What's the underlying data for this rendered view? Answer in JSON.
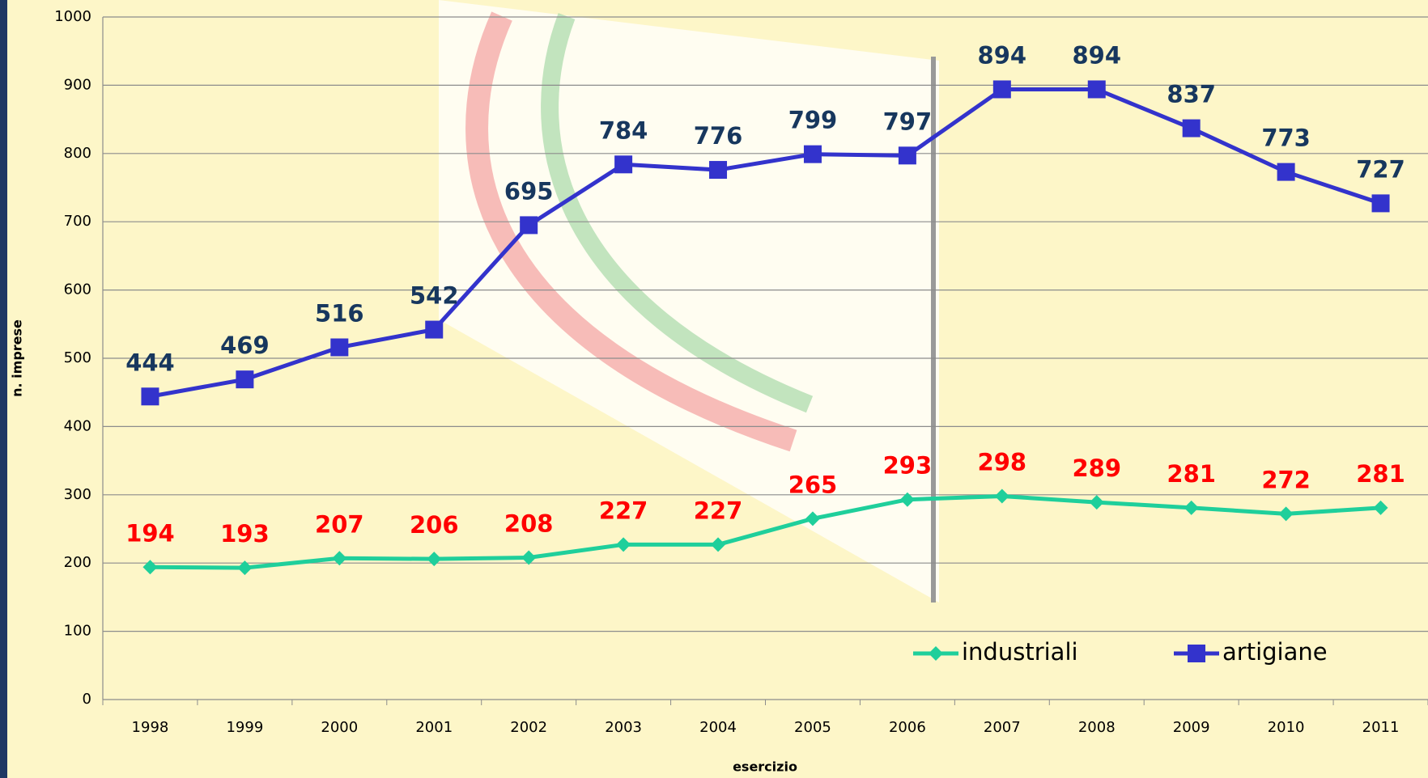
{
  "chart_data": {
    "type": "line",
    "x_label": "esercizio",
    "y_label": "n. imprese",
    "categories": [
      "1998",
      "1999",
      "2000",
      "2001",
      "2002",
      "2003",
      "2004",
      "2005",
      "2006",
      "2007",
      "2008",
      "2009",
      "2010",
      "2011"
    ],
    "series": [
      {
        "name": "industriali",
        "color": "#1fcf9b",
        "label_color": "#ff0000",
        "marker": "diamond",
        "values": [
          194,
          193,
          207,
          206,
          208,
          227,
          227,
          265,
          293,
          298,
          289,
          281,
          272,
          281
        ]
      },
      {
        "name": "artigiane",
        "color": "#3333cc",
        "label_color": "#17375e",
        "marker": "square",
        "values": [
          444,
          469,
          516,
          542,
          695,
          784,
          776,
          799,
          797,
          894,
          894,
          837,
          773,
          727
        ]
      }
    ],
    "ylim": [
      0,
      1000
    ],
    "yticks": [
      0,
      100,
      200,
      300,
      400,
      500,
      600,
      700,
      800,
      900,
      1000
    ],
    "grid": true,
    "legend": "lower right"
  }
}
